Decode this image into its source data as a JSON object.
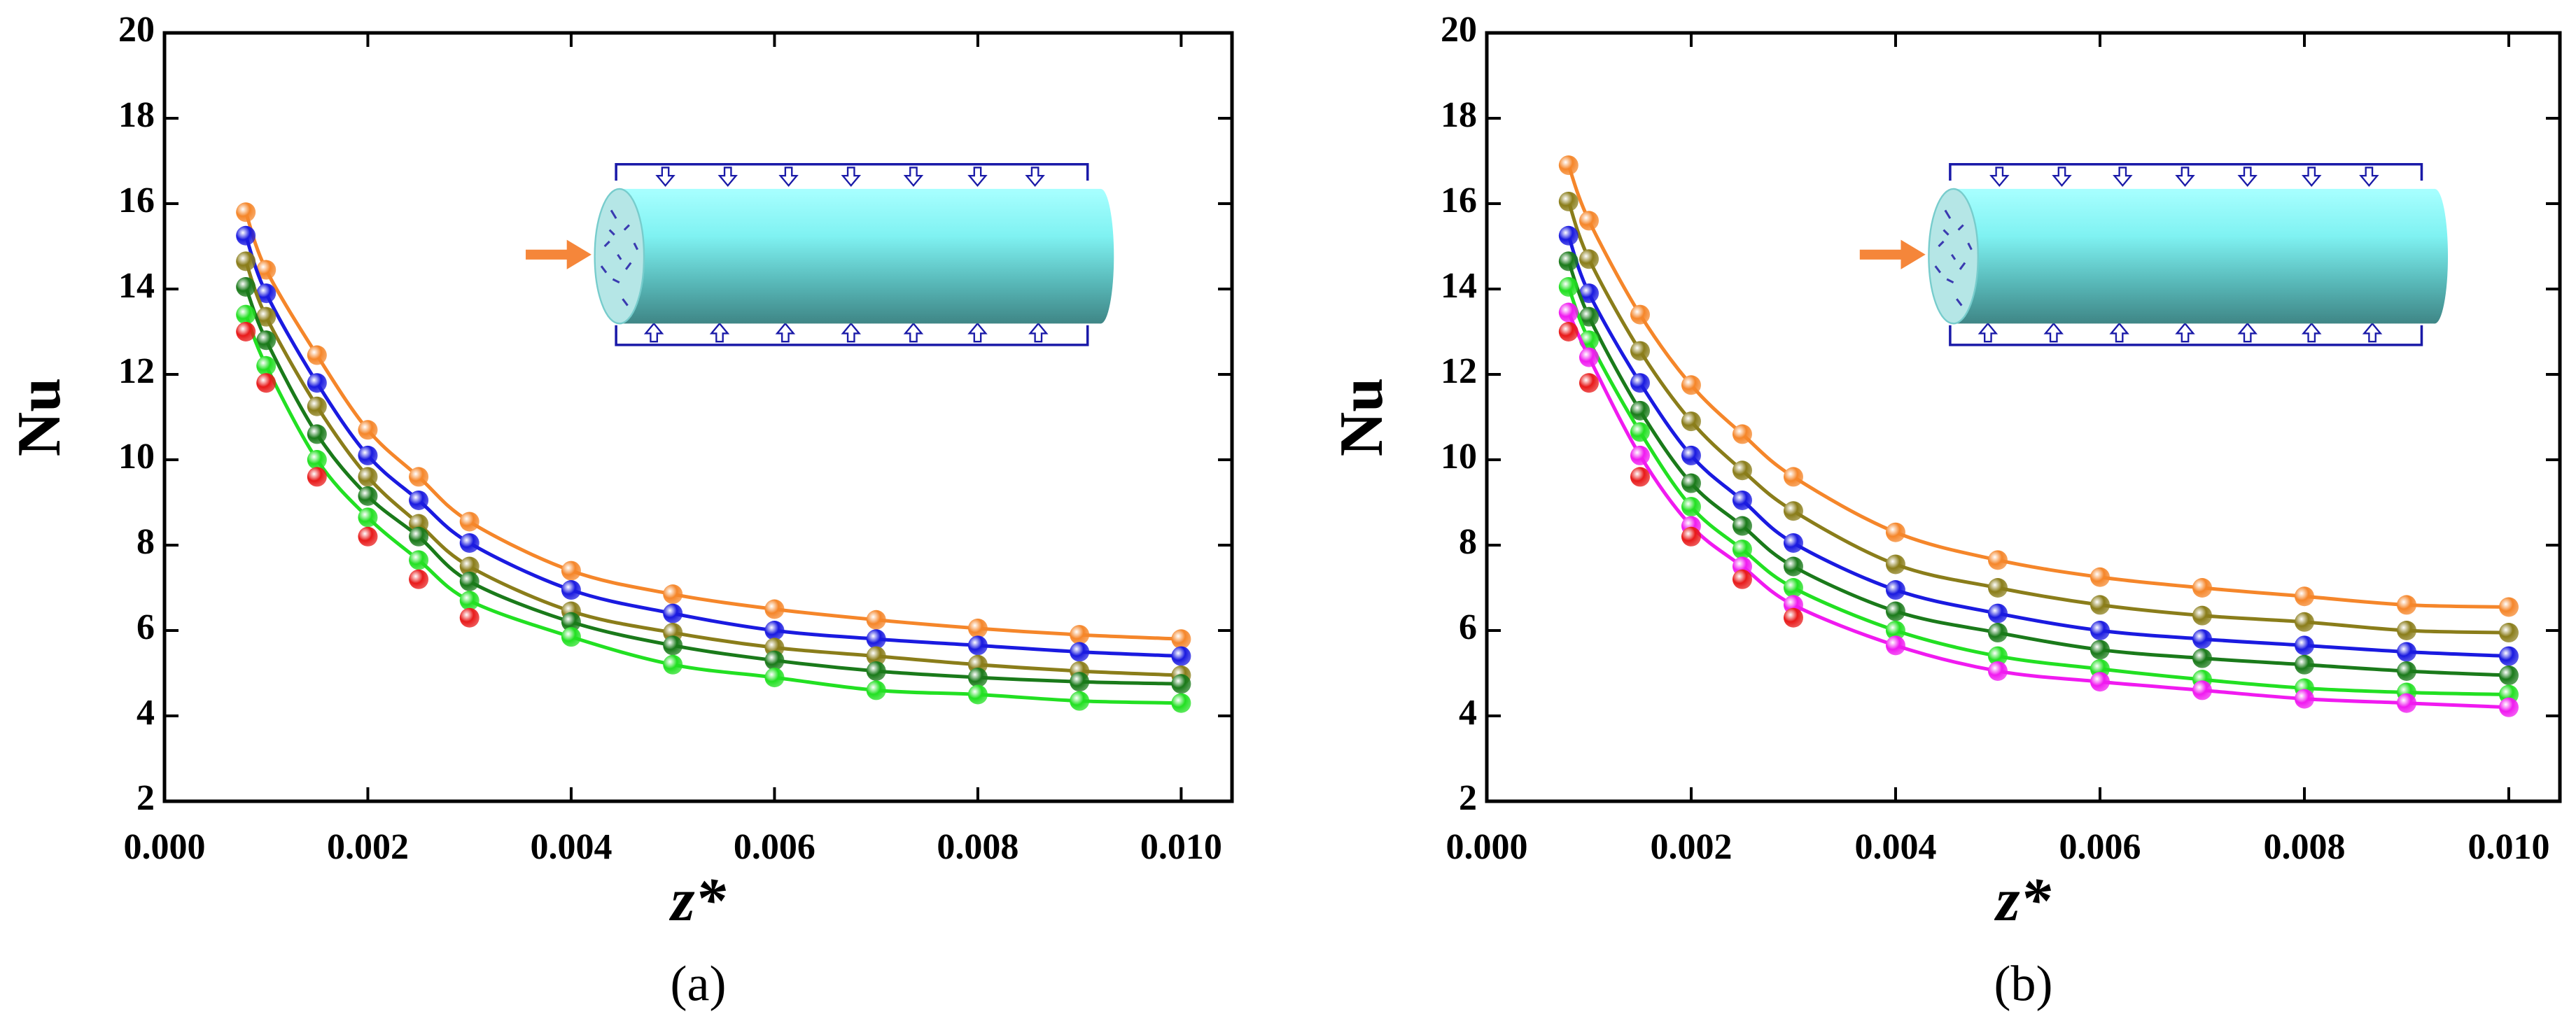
{
  "chart_data": [
    {
      "type": "scatter",
      "label": "(a)",
      "xlabel": "z*",
      "ylabel": "Nu",
      "x": [
        0.0008,
        0.001,
        0.0015,
        0.002,
        0.0025,
        0.003,
        0.004,
        0.005,
        0.006,
        0.007,
        0.008,
        0.009,
        0.01
      ],
      "xlim": [
        0,
        0.0105
      ],
      "xticks": [
        {
          "value": 0,
          "label": "0.000"
        },
        {
          "value": 0.002,
          "label": "0.002"
        },
        {
          "value": 0.004,
          "label": "0.004"
        },
        {
          "value": 0.006,
          "label": "0.006"
        },
        {
          "value": 0.008,
          "label": "0.008"
        },
        {
          "value": 0.01,
          "label": "0.010"
        }
      ],
      "ylim": [
        2,
        20
      ],
      "yticks": [
        2,
        4,
        6,
        8,
        10,
        12,
        14,
        16,
        18,
        20
      ],
      "series": [
        {
          "color": "#f5862a",
          "line": true,
          "values": [
            15.8,
            14.45,
            12.45,
            10.7,
            9.6,
            8.55,
            7.4,
            6.85,
            6.5,
            6.25,
            6.05,
            5.9,
            5.8
          ]
        },
        {
          "color": "#1a1ae0",
          "line": true,
          "values": [
            15.25,
            13.9,
            11.8,
            10.1,
            9.05,
            8.05,
            6.95,
            6.4,
            6.0,
            5.8,
            5.65,
            5.5,
            5.4
          ]
        },
        {
          "color": "#8a7d1a",
          "line": true,
          "values": [
            14.65,
            13.35,
            11.25,
            9.6,
            8.5,
            7.5,
            6.45,
            5.95,
            5.6,
            5.4,
            5.2,
            5.05,
            4.95
          ]
        },
        {
          "color": "#1a7a1a",
          "line": true,
          "values": [
            14.05,
            12.8,
            10.6,
            9.15,
            8.2,
            7.15,
            6.2,
            5.65,
            5.3,
            5.05,
            4.9,
            4.8,
            4.75
          ]
        },
        {
          "color": "#22e022",
          "line": true,
          "values": [
            13.4,
            12.2,
            10.0,
            8.65,
            7.65,
            6.7,
            5.85,
            5.2,
            4.9,
            4.6,
            4.5,
            4.35,
            4.3
          ]
        },
        {
          "color": "#e81a1a",
          "line": false,
          "values": [
            13.0,
            11.8,
            9.6,
            8.2,
            7.2,
            6.3,
            null,
            null,
            null,
            null,
            null,
            null,
            null
          ]
        }
      ]
    },
    {
      "type": "scatter",
      "label": "(b)",
      "xlabel": "z*",
      "ylabel": "Nu",
      "x": [
        0.0008,
        0.001,
        0.0015,
        0.002,
        0.0025,
        0.003,
        0.004,
        0.005,
        0.006,
        0.007,
        0.008,
        0.009,
        0.01
      ],
      "xlim": [
        0,
        0.0105
      ],
      "xticks": [
        {
          "value": 0,
          "label": "0.000"
        },
        {
          "value": 0.002,
          "label": "0.002"
        },
        {
          "value": 0.004,
          "label": "0.004"
        },
        {
          "value": 0.006,
          "label": "0.006"
        },
        {
          "value": 0.008,
          "label": "0.008"
        },
        {
          "value": 0.01,
          "label": "0.010"
        }
      ],
      "ylim": [
        2,
        20
      ],
      "yticks": [
        2,
        4,
        6,
        8,
        10,
        12,
        14,
        16,
        18,
        20
      ],
      "series": [
        {
          "color": "#f5862a",
          "line": true,
          "values": [
            16.9,
            15.6,
            13.4,
            11.75,
            10.6,
            9.6,
            8.3,
            7.65,
            7.25,
            7.0,
            6.8,
            6.6,
            6.55
          ]
        },
        {
          "color": "#8a7d1a",
          "line": true,
          "values": [
            16.05,
            14.7,
            12.55,
            10.9,
            9.75,
            8.8,
            7.55,
            7.0,
            6.6,
            6.35,
            6.2,
            6.0,
            5.95
          ]
        },
        {
          "color": "#1a1ae0",
          "line": true,
          "values": [
            15.25,
            13.9,
            11.8,
            10.1,
            9.05,
            8.05,
            6.95,
            6.4,
            6.0,
            5.8,
            5.65,
            5.5,
            5.4
          ]
        },
        {
          "color": "#1a7a1a",
          "line": true,
          "values": [
            14.65,
            13.35,
            11.15,
            9.45,
            8.45,
            7.5,
            6.45,
            5.95,
            5.55,
            5.35,
            5.2,
            5.05,
            4.95
          ]
        },
        {
          "color": "#22e022",
          "line": true,
          "values": [
            14.05,
            12.8,
            10.65,
            8.9,
            7.9,
            7.0,
            6.0,
            5.4,
            5.1,
            4.85,
            4.65,
            4.55,
            4.5
          ]
        },
        {
          "color": "#f01af0",
          "line": true,
          "values": [
            13.45,
            12.4,
            10.1,
            8.45,
            7.5,
            6.6,
            5.65,
            5.05,
            4.8,
            4.6,
            4.4,
            4.3,
            4.2
          ]
        },
        {
          "color": "#e81a1a",
          "line": false,
          "values": [
            13.0,
            11.8,
            9.6,
            8.2,
            7.2,
            6.3,
            null,
            null,
            null,
            null,
            null,
            null,
            null
          ]
        }
      ]
    }
  ]
}
